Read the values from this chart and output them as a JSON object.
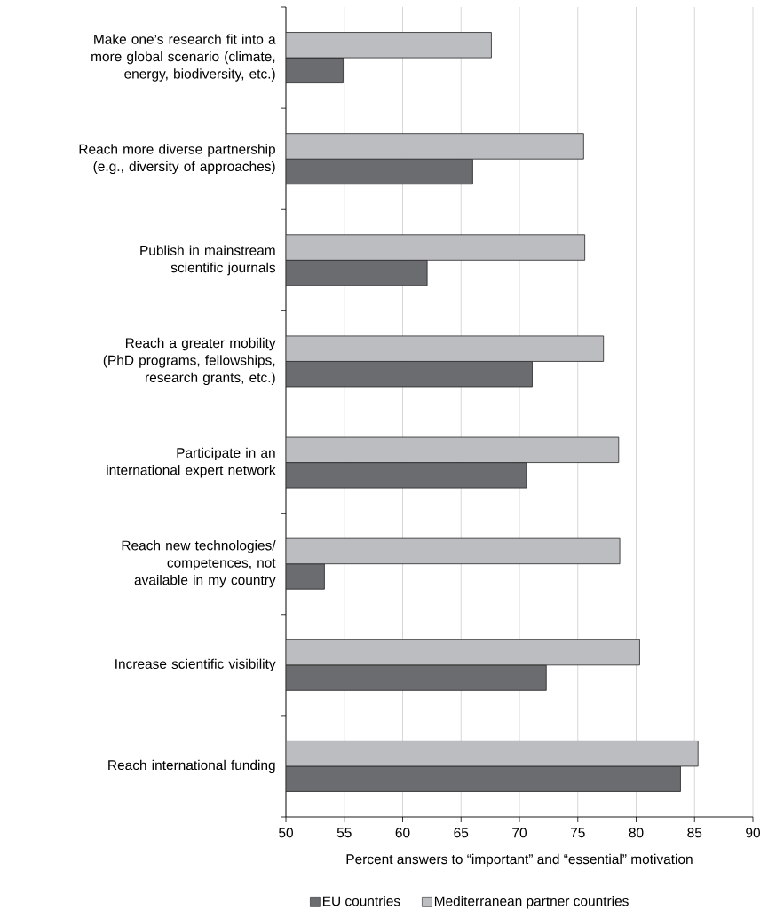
{
  "chart_data": {
    "type": "bar",
    "orientation": "horizontal",
    "categories": [
      "Make one’s research fit into a more global scenario (climate, energy, biodiversity, etc.)",
      "Reach more diverse partnership (e.g., diversity of approaches)",
      "Publish in mainstream scientific journals",
      "Reach a greater mobility (PhD programs, fellowships, research grants, etc.)",
      "Participate in an international expert network",
      "Reach new technologies/ competences, not available in my country",
      "Increase scientific visibility",
      "Reach international funding"
    ],
    "series": [
      {
        "name": "EU countries",
        "color": "#6b6c70",
        "values": [
          54.9,
          66,
          62.1,
          71.1,
          70.6,
          53.3,
          72.3,
          83.8
        ]
      },
      {
        "name": "Mediterranean partner countries",
        "color": "#bcbdc1",
        "values": [
          67.6,
          75.5,
          75.6,
          77.2,
          78.5,
          78.6,
          80.3,
          85.3
        ]
      }
    ],
    "xlabel": "Percent answers to “important” and “essential” motivation",
    "xlim": [
      50,
      90
    ],
    "xticks": [
      50,
      55,
      60,
      65,
      70,
      75,
      80,
      85,
      90
    ],
    "grid": "x",
    "legend": "bottom"
  }
}
